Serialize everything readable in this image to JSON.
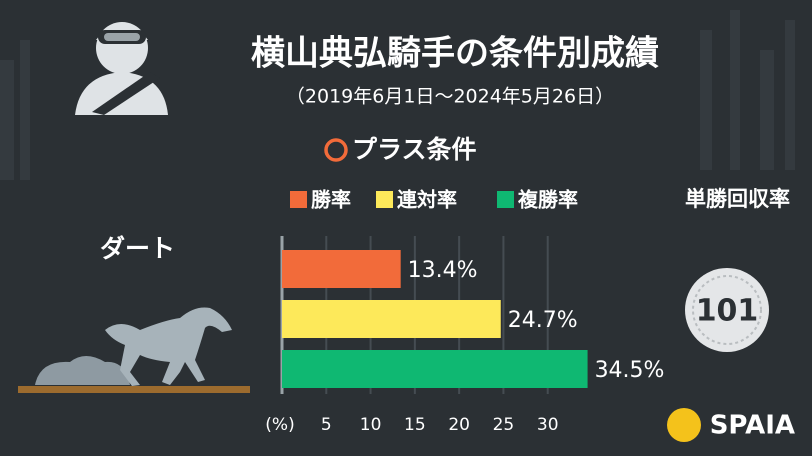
{
  "chart_data": {
    "type": "bar",
    "orientation": "horizontal",
    "title": "横山典弘騎手の条件別成績",
    "subtitle": "（2019年6月1日〜2024年5月26日）",
    "condition": "プラス条件",
    "categories": [
      "ダート"
    ],
    "series": [
      {
        "name": "勝率",
        "color": "#f26b3a",
        "values": [
          13.4
        ],
        "value_labels": [
          "13.4%"
        ]
      },
      {
        "name": "連対率",
        "color": "#fde95a",
        "values": [
          24.7
        ],
        "value_labels": [
          "24.7%"
        ]
      },
      {
        "name": "複勝率",
        "color": "#0fb872",
        "values": [
          34.5
        ],
        "value_labels": [
          "34.5%"
        ]
      }
    ],
    "xlabel": "(%)",
    "xlim": [
      0,
      35
    ],
    "xticks": [
      5,
      10,
      15,
      20,
      25,
      30
    ],
    "grid": true,
    "recovery": {
      "label": "単勝回収率",
      "value": 101
    },
    "brand": "SPAIA"
  }
}
